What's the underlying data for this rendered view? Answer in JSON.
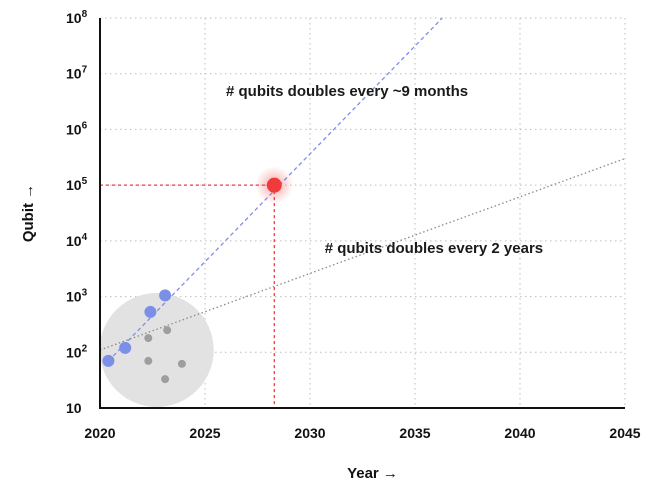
{
  "chart_data": {
    "type": "scatter",
    "x_scale": "linear",
    "y_scale": "log",
    "xlim": [
      2020,
      2045
    ],
    "ylim": [
      10,
      100000000
    ],
    "grid": true,
    "xlabel": "Year →",
    "ylabel": "Qubit →",
    "x_ticks": [
      2020,
      2025,
      2030,
      2035,
      2040,
      2045
    ],
    "y_ticks": [
      {
        "value": 10,
        "base": "10",
        "exp": ""
      },
      {
        "value": 100,
        "base": "10",
        "exp": "2"
      },
      {
        "value": 1000,
        "base": "10",
        "exp": "3"
      },
      {
        "value": 10000,
        "base": "10",
        "exp": "4"
      },
      {
        "value": 100000,
        "base": "10",
        "exp": "5"
      },
      {
        "value": 1000000,
        "base": "10",
        "exp": "6"
      },
      {
        "value": 10000000,
        "base": "10",
        "exp": "7"
      },
      {
        "value": 100000000,
        "base": "10",
        "exp": "8"
      }
    ],
    "series": [
      {
        "color": "#7b8fe6",
        "points": [
          {
            "x": 2020.4,
            "y": 70
          },
          {
            "x": 2021.2,
            "y": 120
          },
          {
            "x": 2022.4,
            "y": 530
          },
          {
            "x": 2023.1,
            "y": 1050
          }
        ]
      },
      {
        "color": "#9e9e9e",
        "points": [
          {
            "x": 2022.3,
            "y": 180
          },
          {
            "x": 2023.2,
            "y": 250
          },
          {
            "x": 2022.3,
            "y": 70
          },
          {
            "x": 2023.1,
            "y": 33
          },
          {
            "x": 2023.9,
            "y": 62
          }
        ]
      }
    ],
    "cluster": {
      "x": 2022.7,
      "y": 110,
      "color": "#e2e2e2"
    },
    "trends": [
      {
        "label": "# qubits doubles every ~9 months",
        "color": "#7b8fe6",
        "points": [
          {
            "x": 2020.4,
            "y": 70
          },
          {
            "x": 2036.3,
            "y": 100000000
          }
        ],
        "label_at": {
          "x": 2026.0,
          "y": 4000000
        }
      },
      {
        "label": "# qubits doubles every 2 years",
        "color": "#8a8a8a",
        "points": [
          {
            "x": 2020,
            "y": 110
          },
          {
            "x": 2045,
            "y": 300000
          }
        ],
        "label_at": {
          "x": 2030.7,
          "y": 6000
        }
      }
    ],
    "highlight": {
      "x": 2028.3,
      "y": 100000,
      "color": "#ef3b3b"
    }
  }
}
